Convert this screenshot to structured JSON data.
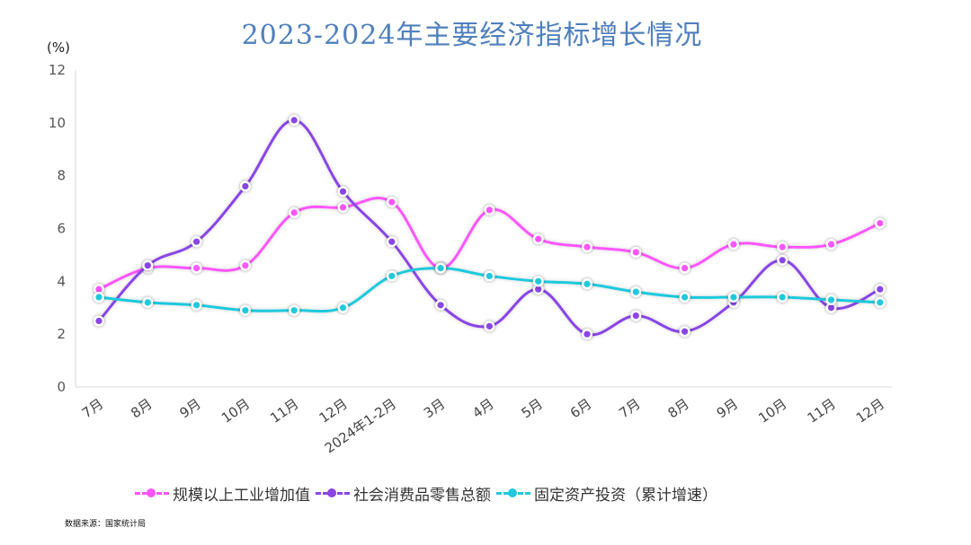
{
  "title": "2023-2024年主要经济指标增长情况",
  "source": "数据来源：国家统计局",
  "chart_data": {
    "type": "line",
    "title": "2023-2024年主要经济指标增长情况",
    "ylabel": "(%)",
    "xlabel": "",
    "ylim": [
      0,
      12
    ],
    "yticks": [
      "0",
      "2",
      "4",
      "6",
      "8",
      "10",
      "12"
    ],
    "grid": false,
    "legend_position": "bottom",
    "categories": [
      "7月",
      "8月",
      "9月",
      "10月",
      "11月",
      "12月",
      "2024年1-2月",
      "3月",
      "4月",
      "5月",
      "6月",
      "7月",
      "8月",
      "9月",
      "10月",
      "11月",
      "12月"
    ],
    "series": [
      {
        "name": "规模以上工业增加值",
        "color": "#ff55ff",
        "values": [
          3.7,
          4.5,
          4.5,
          4.6,
          6.6,
          6.8,
          7.0,
          4.5,
          6.7,
          5.6,
          5.3,
          5.1,
          4.5,
          5.4,
          5.3,
          5.4,
          6.2
        ]
      },
      {
        "name": "社会消费品零售总额",
        "color": "#8a45e6",
        "values": [
          2.5,
          4.6,
          5.5,
          7.6,
          10.1,
          7.4,
          5.5,
          3.1,
          2.3,
          3.7,
          2.0,
          2.7,
          2.1,
          3.2,
          4.8,
          3.0,
          3.7
        ]
      },
      {
        "name": "固定资产投资（累计增速）",
        "color": "#1fc9dc",
        "values": [
          3.4,
          3.2,
          3.1,
          2.9,
          2.9,
          3.0,
          4.2,
          4.5,
          4.2,
          4.0,
          3.9,
          3.6,
          3.4,
          3.4,
          3.4,
          3.3,
          3.2
        ]
      }
    ]
  }
}
